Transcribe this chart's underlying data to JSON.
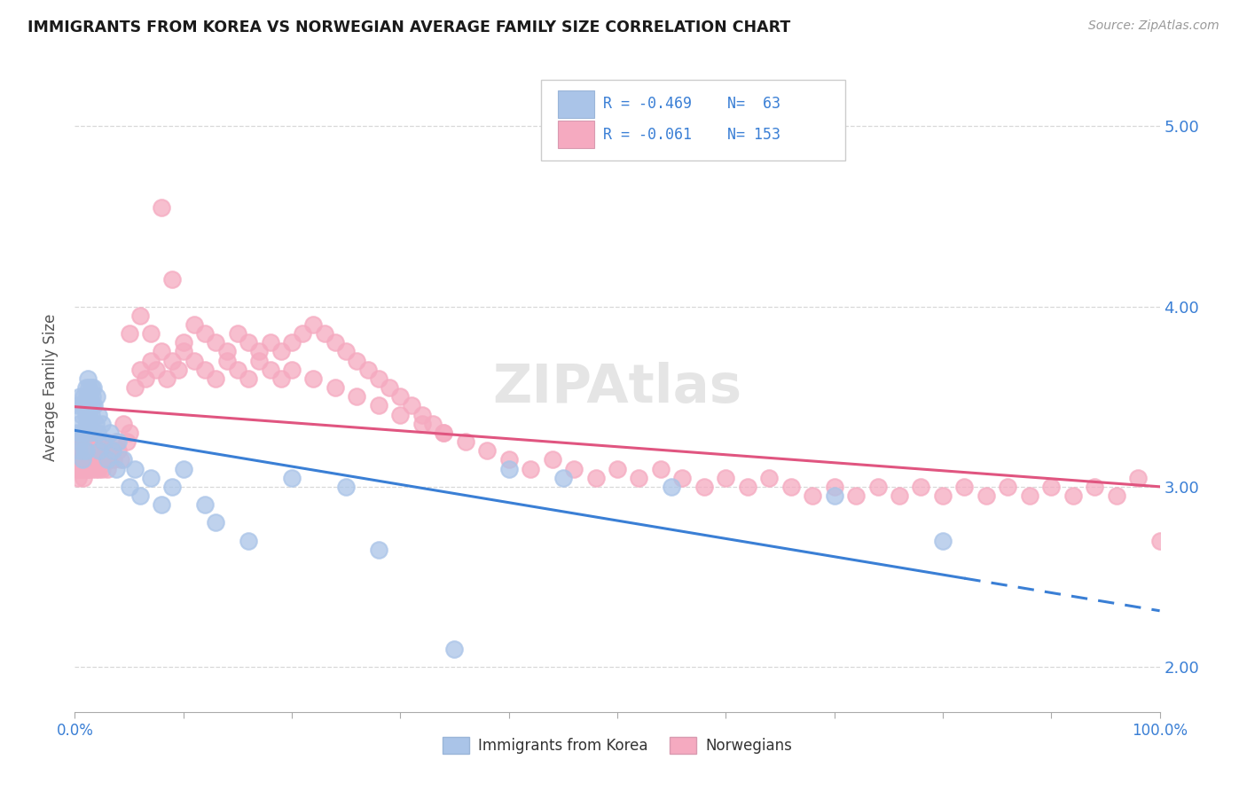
{
  "title": "IMMIGRANTS FROM KOREA VS NORWEGIAN AVERAGE FAMILY SIZE CORRELATION CHART",
  "source": "Source: ZipAtlas.com",
  "ylabel": "Average Family Size",
  "korea_R": "-0.469",
  "korea_N": "63",
  "norway_R": "-0.061",
  "norway_N": "153",
  "legend_label1": "Immigrants from Korea",
  "legend_label2": "Norwegians",
  "korea_color": "#aac4e8",
  "norway_color": "#f5aac0",
  "korea_line_color": "#3a7fd5",
  "norway_line_color": "#e05580",
  "watermark": "ZIPAtlas",
  "background_color": "#ffffff",
  "grid_color": "#d8d8d8",
  "xlim": [
    0.0,
    1.0
  ],
  "ylim": [
    1.75,
    5.35
  ],
  "yticks": [
    2.0,
    3.0,
    4.0,
    5.0
  ],
  "korea_x": [
    0.002,
    0.003,
    0.004,
    0.004,
    0.005,
    0.005,
    0.006,
    0.006,
    0.007,
    0.007,
    0.008,
    0.008,
    0.009,
    0.009,
    0.01,
    0.01,
    0.01,
    0.011,
    0.011,
    0.012,
    0.012,
    0.013,
    0.013,
    0.014,
    0.014,
    0.015,
    0.015,
    0.016,
    0.016,
    0.017,
    0.018,
    0.019,
    0.02,
    0.021,
    0.022,
    0.023,
    0.025,
    0.027,
    0.03,
    0.032,
    0.035,
    0.038,
    0.04,
    0.045,
    0.05,
    0.055,
    0.06,
    0.07,
    0.08,
    0.09,
    0.1,
    0.12,
    0.13,
    0.16,
    0.2,
    0.25,
    0.28,
    0.35,
    0.4,
    0.45,
    0.55,
    0.7,
    0.8
  ],
  "korea_y": [
    3.3,
    3.45,
    3.35,
    3.2,
    3.5,
    3.25,
    3.4,
    3.3,
    3.45,
    3.15,
    3.5,
    3.3,
    3.45,
    3.2,
    3.55,
    3.4,
    3.2,
    3.5,
    3.35,
    3.45,
    3.6,
    3.55,
    3.4,
    3.5,
    3.3,
    3.55,
    3.4,
    3.5,
    3.45,
    3.55,
    3.45,
    3.35,
    3.5,
    3.3,
    3.4,
    3.2,
    3.35,
    3.25,
    3.15,
    3.3,
    3.2,
    3.1,
    3.25,
    3.15,
    3.0,
    3.1,
    2.95,
    3.05,
    2.9,
    3.0,
    3.1,
    2.9,
    2.8,
    2.7,
    3.05,
    3.0,
    2.65,
    2.1,
    3.1,
    3.05,
    3.0,
    2.95,
    2.7
  ],
  "norway_x": [
    0.001,
    0.002,
    0.002,
    0.003,
    0.003,
    0.004,
    0.004,
    0.005,
    0.005,
    0.006,
    0.006,
    0.007,
    0.007,
    0.008,
    0.008,
    0.008,
    0.009,
    0.009,
    0.01,
    0.01,
    0.011,
    0.011,
    0.012,
    0.012,
    0.013,
    0.013,
    0.014,
    0.015,
    0.015,
    0.016,
    0.017,
    0.018,
    0.018,
    0.019,
    0.02,
    0.02,
    0.021,
    0.022,
    0.023,
    0.024,
    0.025,
    0.026,
    0.027,
    0.028,
    0.03,
    0.03,
    0.032,
    0.034,
    0.036,
    0.038,
    0.04,
    0.042,
    0.045,
    0.048,
    0.05,
    0.055,
    0.06,
    0.065,
    0.07,
    0.075,
    0.08,
    0.085,
    0.09,
    0.095,
    0.1,
    0.11,
    0.12,
    0.13,
    0.14,
    0.15,
    0.16,
    0.17,
    0.18,
    0.19,
    0.2,
    0.22,
    0.24,
    0.26,
    0.28,
    0.3,
    0.32,
    0.34,
    0.36,
    0.38,
    0.4,
    0.42,
    0.44,
    0.46,
    0.48,
    0.5,
    0.52,
    0.54,
    0.56,
    0.58,
    0.6,
    0.62,
    0.64,
    0.66,
    0.68,
    0.7,
    0.72,
    0.74,
    0.76,
    0.78,
    0.8,
    0.82,
    0.84,
    0.86,
    0.88,
    0.9,
    0.92,
    0.94,
    0.96,
    0.98,
    1.0,
    0.05,
    0.06,
    0.07,
    0.08,
    0.09,
    0.1,
    0.11,
    0.12,
    0.13,
    0.14,
    0.15,
    0.16,
    0.17,
    0.18,
    0.19,
    0.2,
    0.21,
    0.22,
    0.23,
    0.24,
    0.25,
    0.26,
    0.27,
    0.28,
    0.29,
    0.3,
    0.31,
    0.32,
    0.33,
    0.34
  ],
  "norway_y": [
    3.15,
    3.1,
    3.2,
    3.05,
    3.25,
    3.1,
    3.2,
    3.15,
    3.25,
    3.1,
    3.2,
    3.15,
    3.25,
    3.1,
    3.2,
    3.05,
    3.15,
    3.25,
    3.1,
    3.2,
    3.15,
    3.25,
    3.1,
    3.2,
    3.15,
    3.25,
    3.1,
    3.2,
    3.15,
    3.1,
    3.2,
    3.15,
    3.25,
    3.1,
    3.2,
    3.15,
    3.25,
    3.1,
    3.2,
    3.15,
    3.1,
    3.2,
    3.15,
    3.25,
    3.2,
    3.1,
    3.15,
    3.2,
    3.15,
    3.25,
    3.2,
    3.15,
    3.35,
    3.25,
    3.3,
    3.55,
    3.65,
    3.6,
    3.7,
    3.65,
    3.75,
    3.6,
    3.7,
    3.65,
    3.75,
    3.7,
    3.65,
    3.6,
    3.7,
    3.65,
    3.6,
    3.7,
    3.65,
    3.6,
    3.65,
    3.6,
    3.55,
    3.5,
    3.45,
    3.4,
    3.35,
    3.3,
    3.25,
    3.2,
    3.15,
    3.1,
    3.15,
    3.1,
    3.05,
    3.1,
    3.05,
    3.1,
    3.05,
    3.0,
    3.05,
    3.0,
    3.05,
    3.0,
    2.95,
    3.0,
    2.95,
    3.0,
    2.95,
    3.0,
    2.95,
    3.0,
    2.95,
    3.0,
    2.95,
    3.0,
    2.95,
    3.0,
    2.95,
    3.05,
    2.7,
    3.85,
    3.95,
    3.85,
    4.55,
    4.15,
    3.8,
    3.9,
    3.85,
    3.8,
    3.75,
    3.85,
    3.8,
    3.75,
    3.8,
    3.75,
    3.8,
    3.85,
    3.9,
    3.85,
    3.8,
    3.75,
    3.7,
    3.65,
    3.6,
    3.55,
    3.5,
    3.45,
    3.4,
    3.35,
    3.3
  ]
}
